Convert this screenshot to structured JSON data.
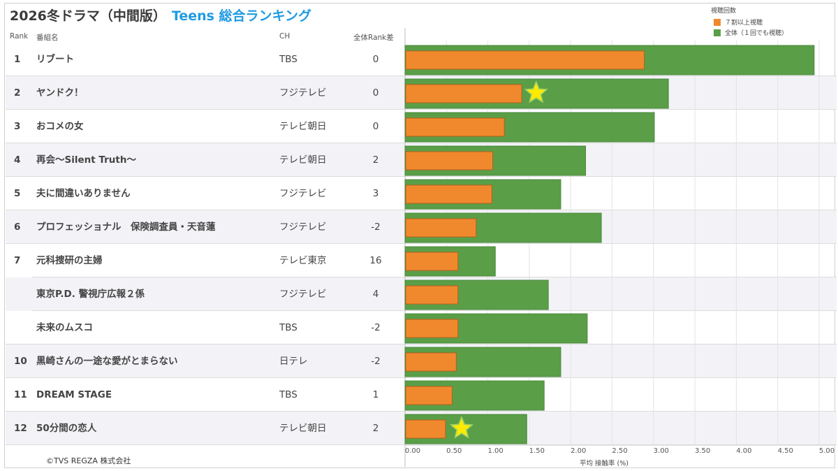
{
  "title": {
    "main": "2026冬ドラマ（中間版）",
    "accent": "Teens 総合ランキング"
  },
  "headers": {
    "rank": "Rank",
    "name": "番組名",
    "ch": "CH",
    "diff": "全体Rank差"
  },
  "legend": {
    "title": "視聴回数",
    "items": [
      {
        "label": "７割以上視聴",
        "color": "#f0892e"
      },
      {
        "label": "全体（１回でも視聴）",
        "color": "#5a9e48"
      }
    ]
  },
  "rows": [
    {
      "rank": "1",
      "name": "リブート",
      "ch": "TBS",
      "diff": "0"
    },
    {
      "rank": "2",
      "name": "ヤンドク！",
      "ch": "フジテレビ",
      "diff": "0"
    },
    {
      "rank": "3",
      "name": "おコメの女",
      "ch": "テレビ朝日",
      "diff": "0"
    },
    {
      "rank": "4",
      "name": "再会～Silent Truth～",
      "ch": "テレビ朝日",
      "diff": "2"
    },
    {
      "rank": "5",
      "name": "夫に間違いありません",
      "ch": "フジテレビ",
      "diff": "3"
    },
    {
      "rank": "6",
      "name": "プロフェッショナル　保険調査員・天音蓮",
      "ch": "フジテレビ",
      "diff": "-2"
    },
    {
      "rank": "7",
      "name": "元科捜研の主婦",
      "ch": "テレビ東京",
      "diff": "16"
    },
    {
      "rank": "",
      "name": "東京P.D. 警視庁広報２係",
      "ch": "フジテレビ",
      "diff": "4"
    },
    {
      "rank": "",
      "name": "未来のムスコ",
      "ch": "TBS",
      "diff": "-2"
    },
    {
      "rank": "10",
      "name": "黒崎さんの一途な愛がとまらない",
      "ch": "日テレ",
      "diff": "-2"
    },
    {
      "rank": "11",
      "name": "DREAM STAGE",
      "ch": "TBS",
      "diff": "1"
    },
    {
      "rank": "12",
      "name": "50分間の恋人",
      "ch": "テレビ朝日",
      "diff": "2"
    }
  ],
  "chart_data": {
    "type": "bar",
    "orientation": "horizontal",
    "xlabel": "平均 接触率 (%)",
    "xlim": [
      0,
      5.0
    ],
    "ticks": [
      "0.00",
      "0.50",
      "1.00",
      "1.50",
      "2.00",
      "2.50",
      "3.00",
      "3.50",
      "4.00",
      "4.50",
      "5.00"
    ],
    "categories": [
      "リブート",
      "ヤンドク！",
      "おコメの女",
      "再会～Silent Truth～",
      "夫に間違いありません",
      "プロフェッショナル　保険調査員・天音蓮",
      "元科捜研の主婦",
      "東京P.D. 警視庁広報２係",
      "未来のムスコ",
      "黒崎さんの一途な愛がとまらない",
      "DREAM STAGE",
      "50分間の恋人"
    ],
    "series": [
      {
        "name": "全体（１回でも視聴）",
        "color": "#5a9e48",
        "values": [
          4.94,
          3.18,
          3.01,
          2.18,
          1.88,
          2.37,
          1.09,
          1.73,
          2.2,
          1.88,
          1.68,
          1.47
        ]
      },
      {
        "name": "７割以上視聴",
        "color": "#f0892e",
        "values": [
          2.88,
          1.4,
          1.19,
          1.05,
          1.04,
          0.85,
          0.63,
          0.63,
          0.63,
          0.61,
          0.56,
          0.48
        ]
      }
    ],
    "stars": [
      {
        "row": 1,
        "x": 1.6
      },
      {
        "row": 11,
        "x": 0.7
      }
    ]
  },
  "copyright": "©TVS REGZA 株式会社"
}
